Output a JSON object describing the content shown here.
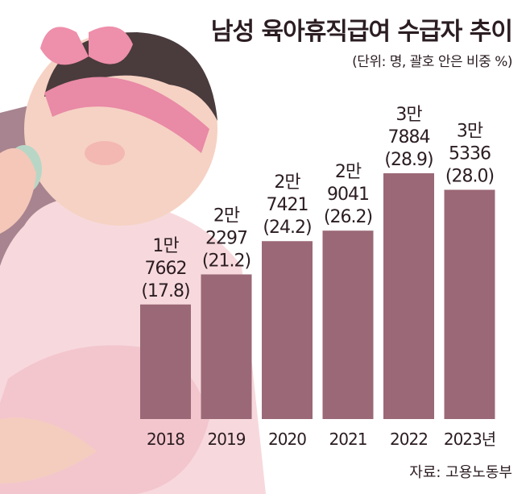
{
  "title": "남성 육아휴직급여 수급자 추이",
  "subtitle": "(단위: 명, 괄호 안은 비중 %)",
  "source": "자료: 고용노동부",
  "colors": {
    "bar": "#9b6877",
    "text": "#2b1d22",
    "background": "#ffffff"
  },
  "chart_data": {
    "type": "bar",
    "title": "남성 육아휴직급여 수급자 추이",
    "categories": [
      "2018",
      "2019",
      "2020",
      "2021",
      "2022",
      "2023년"
    ],
    "values": [
      17662,
      22297,
      27421,
      29041,
      37884,
      35336
    ],
    "shares": [
      17.8,
      21.2,
      24.2,
      26.2,
      28.9,
      28.0
    ],
    "value_labels": [
      [
        "1만",
        "7662",
        "(17.8)"
      ],
      [
        "2만",
        "2297",
        "(21.2)"
      ],
      [
        "2만",
        "7421",
        "(24.2)"
      ],
      [
        "2만",
        "9041",
        "(26.2)"
      ],
      [
        "3만",
        "7884",
        "(28.9)"
      ],
      [
        "3만",
        "5336",
        "(28.0)"
      ]
    ],
    "ylim": [
      0,
      40000
    ],
    "grid": false,
    "legend": "none"
  }
}
